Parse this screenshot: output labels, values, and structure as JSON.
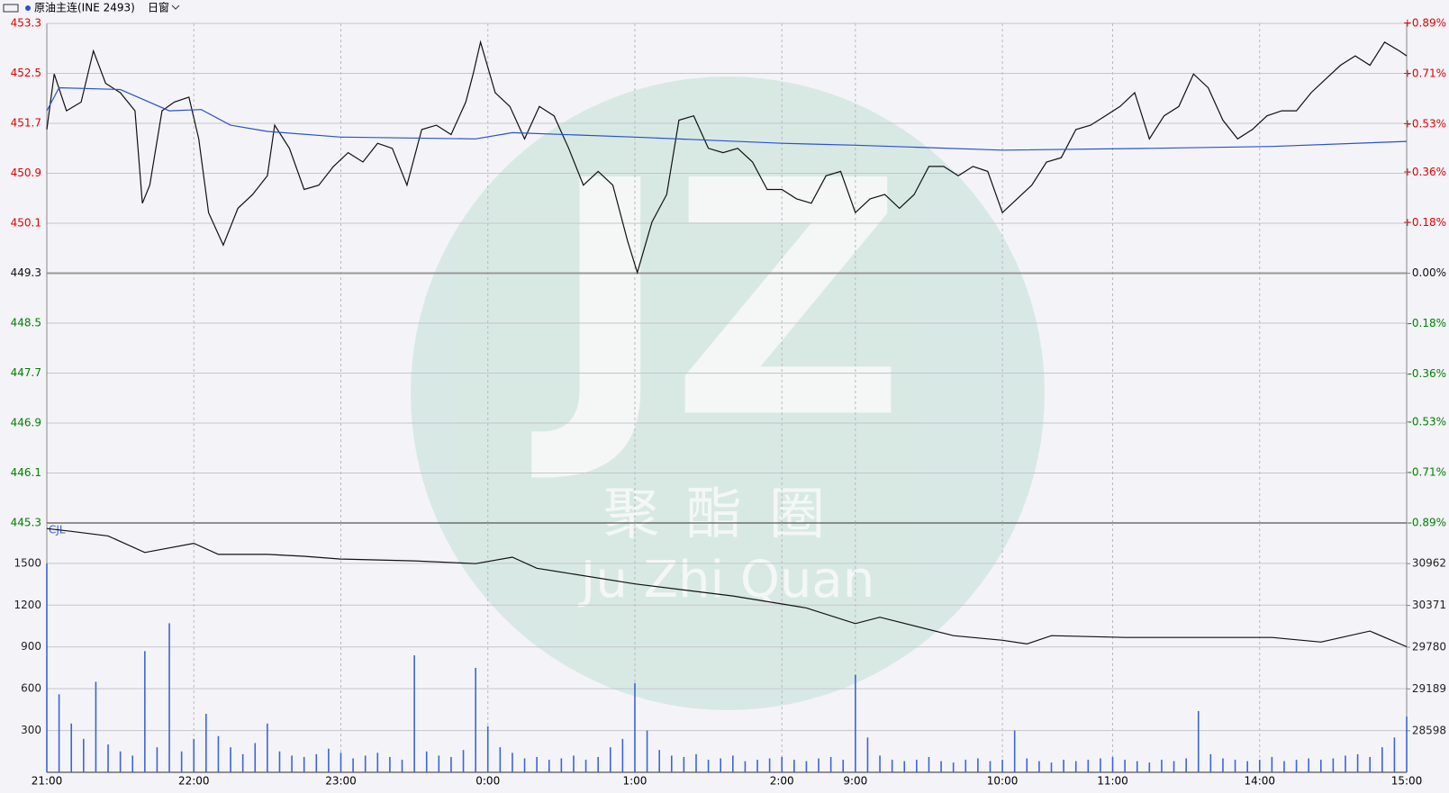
{
  "header": {
    "instrument": "原油主连(INE 2493)",
    "window": "日窗"
  },
  "watermark": {
    "logo": "JZ",
    "name": "聚酯圈",
    "latin": "Ju Zhi Quan"
  },
  "chart_data": [
    {
      "type": "line",
      "xlim": [
        0,
        555
      ],
      "ylim": [
        445.3,
        453.3
      ],
      "yticks": [
        453.3,
        452.5,
        451.7,
        450.9,
        450.1,
        449.3,
        448.5,
        447.7,
        446.9,
        446.1,
        445.3
      ],
      "y2lim": [
        -0.89,
        0.89
      ],
      "y2ticks": [
        {
          "value": 0.89,
          "label": "+0.89%"
        },
        {
          "value": 0.71,
          "label": "+0.71%"
        },
        {
          "value": 0.53,
          "label": "+0.53%"
        },
        {
          "value": 0.36,
          "label": "+0.36%"
        },
        {
          "value": 0.18,
          "label": "+0.18%"
        },
        {
          "value": 0,
          "label": "0.00%"
        },
        {
          "value": -0.18,
          "label": "-0.18%"
        },
        {
          "value": -0.36,
          "label": "-0.36%"
        },
        {
          "value": -0.53,
          "label": "-0.53%"
        },
        {
          "value": -0.71,
          "label": "-0.71%"
        },
        {
          "value": -0.89,
          "label": "-0.89%"
        }
      ],
      "up_color": "#e00000",
      "down_color": "#008000",
      "grid": true,
      "series": [
        {
          "color": "#111111",
          "x": [
            0,
            3,
            8,
            14,
            19,
            24,
            30,
            36,
            39,
            42,
            47,
            52,
            58,
            62,
            66,
            72,
            78,
            84,
            90,
            93,
            99,
            105,
            111,
            117,
            123,
            129,
            135,
            141,
            147,
            153,
            159,
            165,
            171,
            174,
            177,
            183,
            189,
            195,
            201,
            207,
            213,
            219,
            225,
            231,
            237,
            241,
            247,
            253,
            258,
            264,
            270,
            276,
            282,
            288,
            294,
            300,
            306,
            312,
            318,
            324,
            330,
            336,
            342,
            348,
            354,
            360,
            366,
            372,
            378,
            384,
            390,
            396,
            402,
            408,
            414,
            420,
            426,
            432,
            438,
            444,
            450,
            456,
            462,
            468,
            474,
            480,
            486,
            492,
            498,
            504,
            510,
            516,
            522,
            528,
            534,
            540,
            546,
            552,
            555
          ],
          "values": [
            451.6,
            452.49,
            451.9,
            452.04,
            452.86,
            452.34,
            452.19,
            451.9,
            450.42,
            450.71,
            451.9,
            452.04,
            452.12,
            451.45,
            450.27,
            449.75,
            450.34,
            450.56,
            450.86,
            451.67,
            451.3,
            450.64,
            450.71,
            451.01,
            451.23,
            451.08,
            451.38,
            451.3,
            450.71,
            451.6,
            451.67,
            451.52,
            452.04,
            452.49,
            453.0,
            452.19,
            451.97,
            451.45,
            451.97,
            451.82,
            451.3,
            450.71,
            450.93,
            450.71,
            449.82,
            449.31,
            450.12,
            450.56,
            451.75,
            451.82,
            451.3,
            451.23,
            451.3,
            451.08,
            450.64,
            450.64,
            450.49,
            450.42,
            450.86,
            450.93,
            450.27,
            450.49,
            450.56,
            450.34,
            450.56,
            451.01,
            451.01,
            450.86,
            451.01,
            450.93,
            450.27,
            450.49,
            450.71,
            451.08,
            451.15,
            451.6,
            451.67,
            451.82,
            451.97,
            452.19,
            451.45,
            451.82,
            451.97,
            452.49,
            452.27,
            451.75,
            451.45,
            451.6,
            451.82,
            451.9,
            451.9,
            452.19,
            452.41,
            452.63,
            452.78,
            452.63,
            453.0,
            452.86,
            452.78
          ]
        },
        {
          "color": "#2a4fd0",
          "x": [
            0,
            5,
            30,
            50,
            63,
            75,
            90,
            120,
            175,
            190,
            240,
            300,
            330,
            390,
            450,
            500,
            555
          ],
          "values": [
            451.9,
            452.27,
            452.24,
            451.9,
            451.92,
            451.67,
            451.57,
            451.48,
            451.45,
            451.55,
            451.48,
            451.38,
            451.35,
            451.27,
            451.3,
            451.33,
            451.41
          ]
        }
      ]
    },
    {
      "type": "bar",
      "label": "CJL",
      "xlim": [
        0,
        555
      ],
      "ylim": [
        0,
        1790
      ],
      "yticks": [
        300,
        600,
        900,
        1200,
        1500
      ],
      "y2lim": [
        28010,
        31537
      ],
      "y2ticks": [
        28598,
        29189,
        29780,
        30371,
        30962
      ],
      "xticks": [
        {
          "value": 0,
          "label": "21:00"
        },
        {
          "value": 60,
          "label": "22:00"
        },
        {
          "value": 120,
          "label": "23:00"
        },
        {
          "value": 180,
          "label": "0:00"
        },
        {
          "value": 240,
          "label": "1:00"
        },
        {
          "value": 300,
          "label": "2:00"
        },
        {
          "value": 330,
          "label": "9:00"
        },
        {
          "value": 390,
          "label": "10:00"
        },
        {
          "value": 435,
          "label": "11:00"
        },
        {
          "value": 495,
          "label": "14:00"
        },
        {
          "value": 555,
          "label": "15:00"
        }
      ],
      "series": [
        {
          "color": "#3c64d8",
          "x": [
            0,
            5,
            10,
            15,
            20,
            25,
            30,
            35,
            40,
            45,
            50,
            55,
            60,
            65,
            70,
            75,
            80,
            85,
            90,
            95,
            100,
            105,
            110,
            115,
            120,
            125,
            130,
            135,
            140,
            145,
            150,
            155,
            160,
            165,
            170,
            175,
            180,
            185,
            190,
            195,
            200,
            205,
            210,
            215,
            220,
            225,
            230,
            235,
            240,
            245,
            250,
            255,
            260,
            265,
            270,
            275,
            280,
            285,
            290,
            295,
            300,
            305,
            310,
            315,
            320,
            325,
            330,
            335,
            340,
            345,
            350,
            355,
            360,
            365,
            370,
            375,
            380,
            385,
            390,
            395,
            400,
            405,
            410,
            415,
            420,
            425,
            430,
            435,
            440,
            445,
            450,
            455,
            460,
            465,
            470,
            475,
            480,
            485,
            490,
            495,
            500,
            505,
            510,
            515,
            520,
            525,
            530,
            535,
            540,
            545,
            550,
            555
          ],
          "values": [
            1500,
            560,
            350,
            240,
            650,
            200,
            150,
            120,
            870,
            180,
            1070,
            150,
            240,
            420,
            260,
            180,
            130,
            210,
            350,
            150,
            120,
            110,
            130,
            170,
            140,
            100,
            120,
            140,
            110,
            90,
            840,
            150,
            120,
            110,
            160,
            750,
            330,
            180,
            140,
            100,
            110,
            90,
            100,
            120,
            90,
            110,
            180,
            240,
            640,
            300,
            160,
            120,
            110,
            130,
            90,
            100,
            120,
            80,
            90,
            100,
            110,
            90,
            80,
            100,
            110,
            90,
            700,
            250,
            120,
            90,
            80,
            90,
            110,
            80,
            70,
            90,
            100,
            80,
            90,
            300,
            100,
            80,
            70,
            90,
            80,
            90,
            100,
            110,
            90,
            80,
            70,
            90,
            80,
            100,
            440,
            130,
            100,
            90,
            80,
            90,
            110,
            80,
            90,
            100,
            90,
            100,
            120,
            130,
            110,
            180,
            250,
            400
          ]
        },
        {
          "type": "line",
          "axis": "y2",
          "color": "#111111",
          "x": [
            0,
            10,
            25,
            40,
            60,
            70,
            90,
            105,
            120,
            150,
            175,
            190,
            200,
            240,
            280,
            310,
            330,
            340,
            370,
            390,
            400,
            410,
            440,
            470,
            500,
            520,
            540,
            555
          ],
          "values": [
            31458,
            31419,
            31354,
            31119,
            31249,
            31092,
            31092,
            31066,
            31027,
            31001,
            30962,
            31053,
            30897,
            30675,
            30505,
            30335,
            30113,
            30204,
            29943,
            29878,
            29826,
            29943,
            29917,
            29917,
            29917,
            29852,
            30008,
            29786
          ]
        }
      ]
    }
  ]
}
